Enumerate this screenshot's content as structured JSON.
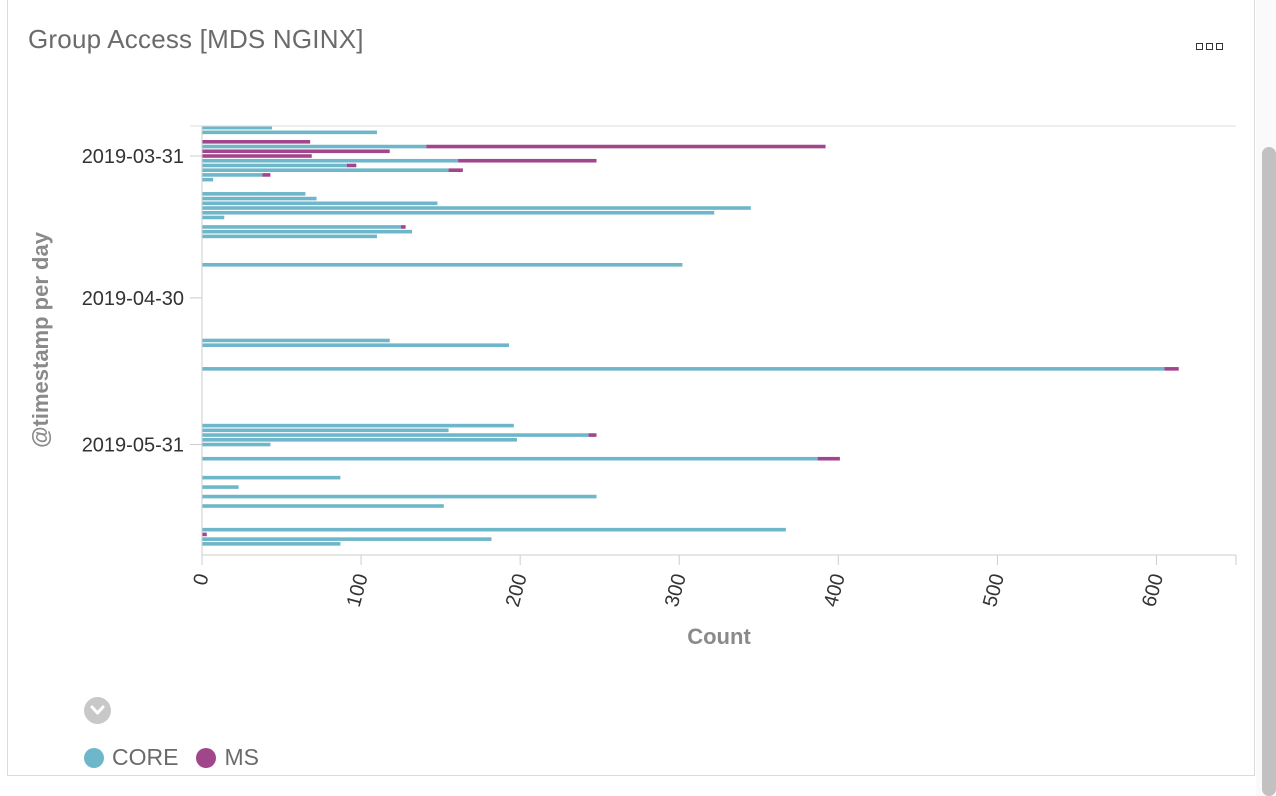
{
  "panel": {
    "title": "Group Access [MDS NGINX]"
  },
  "chart_data": {
    "type": "bar",
    "orientation": "horizontal",
    "stacked": true,
    "title": "",
    "xlabel": "Count",
    "ylabel": "@timestamp per day",
    "xlim": [
      0,
      650
    ],
    "x_ticks": [
      0,
      100,
      200,
      300,
      400,
      500,
      600
    ],
    "y_ticks": [
      {
        "label": "2019-03-31",
        "day": 31
      },
      {
        "label": "2019-04-30",
        "day": 61
      },
      {
        "label": "2019-05-31",
        "day": 92
      }
    ],
    "grid": false,
    "legend_position": "bottom-left",
    "series": [
      {
        "name": "CORE",
        "color": "#6eb6c9"
      },
      {
        "name": "MS",
        "color": "#a2468c"
      }
    ],
    "rows": [
      {
        "day": 25,
        "CORE": 44,
        "MS": 0
      },
      {
        "day": 26,
        "CORE": 110,
        "MS": 0
      },
      {
        "day": 28,
        "CORE": 0,
        "MS": 68
      },
      {
        "day": 29,
        "CORE": 141,
        "MS": 251
      },
      {
        "day": 30,
        "CORE": 0,
        "MS": 118
      },
      {
        "day": 31,
        "CORE": 0,
        "MS": 69
      },
      {
        "day": 32,
        "CORE": 161,
        "MS": 87
      },
      {
        "day": 33,
        "CORE": 91,
        "MS": 6
      },
      {
        "day": 34,
        "CORE": 155,
        "MS": 9
      },
      {
        "day": 35,
        "CORE": 38,
        "MS": 5
      },
      {
        "day": 36,
        "CORE": 7,
        "MS": 0
      },
      {
        "day": 39,
        "CORE": 65,
        "MS": 0
      },
      {
        "day": 40,
        "CORE": 72,
        "MS": 0
      },
      {
        "day": 41,
        "CORE": 148,
        "MS": 0
      },
      {
        "day": 42,
        "CORE": 345,
        "MS": 0
      },
      {
        "day": 43,
        "CORE": 322,
        "MS": 0
      },
      {
        "day": 44,
        "CORE": 14,
        "MS": 0
      },
      {
        "day": 46,
        "CORE": 125,
        "MS": 3
      },
      {
        "day": 47,
        "CORE": 132,
        "MS": 0
      },
      {
        "day": 48,
        "CORE": 110,
        "MS": 0
      },
      {
        "day": 54,
        "CORE": 302,
        "MS": 0
      },
      {
        "day": 70,
        "CORE": 118,
        "MS": 0
      },
      {
        "day": 71,
        "CORE": 193,
        "MS": 0
      },
      {
        "day": 76,
        "CORE": 605,
        "MS": 9
      },
      {
        "day": 88,
        "CORE": 196,
        "MS": 0
      },
      {
        "day": 89,
        "CORE": 155,
        "MS": 0
      },
      {
        "day": 90,
        "CORE": 243,
        "MS": 5
      },
      {
        "day": 91,
        "CORE": 198,
        "MS": 0
      },
      {
        "day": 92,
        "CORE": 43,
        "MS": 0
      },
      {
        "day": 95,
        "CORE": 387,
        "MS": 14
      },
      {
        "day": 99,
        "CORE": 87,
        "MS": 0
      },
      {
        "day": 101,
        "CORE": 23,
        "MS": 0
      },
      {
        "day": 103,
        "CORE": 248,
        "MS": 0
      },
      {
        "day": 105,
        "CORE": 152,
        "MS": 0
      },
      {
        "day": 110,
        "CORE": 367,
        "MS": 0
      },
      {
        "day": 111,
        "CORE": 0,
        "MS": 3
      },
      {
        "day": 112,
        "CORE": 182,
        "MS": 0
      },
      {
        "day": 113,
        "CORE": 87,
        "MS": 0
      }
    ]
  }
}
